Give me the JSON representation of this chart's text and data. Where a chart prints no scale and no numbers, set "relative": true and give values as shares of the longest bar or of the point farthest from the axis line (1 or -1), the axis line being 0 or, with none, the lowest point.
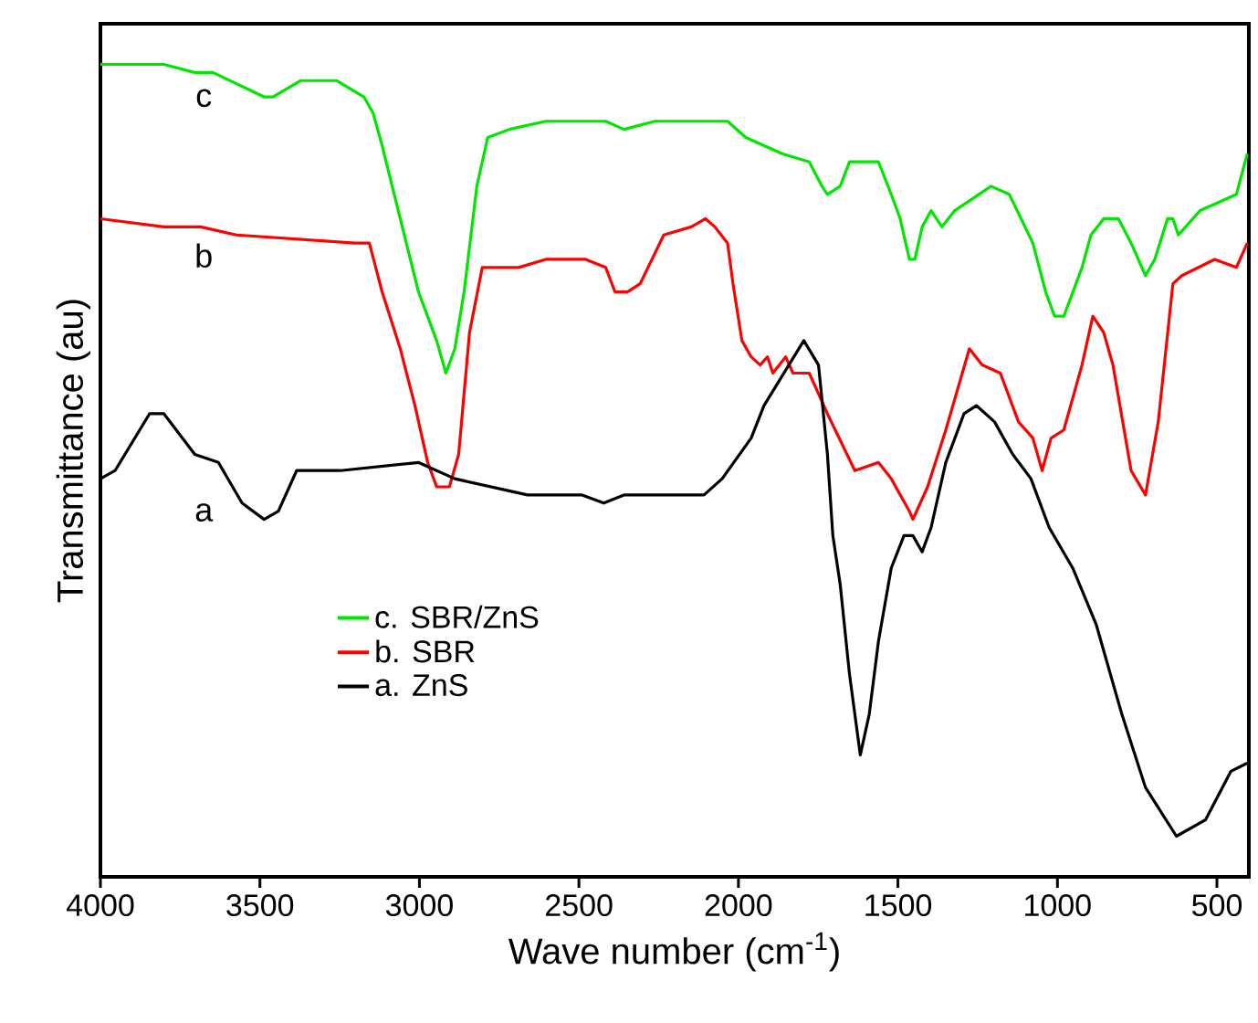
{
  "chart_data": {
    "type": "line",
    "xlabel": "Wave number (cm$^{-1}$)",
    "ylabel": "Transmittance (au)",
    "relative": true,
    "xlim": [
      4000,
      400
    ],
    "xticks": [
      4000,
      3500,
      3000,
      2500,
      2000,
      1500,
      1000,
      500
    ],
    "legend": "bottom left",
    "grid": false,
    "marker": "none",
    "line_style": "solid",
    "series": [
      {
        "name": "c. SBR/ZnS",
        "color": "#00e600",
        "x": [
          4000,
          3801,
          3704,
          3647,
          3487,
          3459,
          3373,
          3259,
          3174,
          3145,
          3117,
          3060,
          3003,
          2946,
          2917,
          2889,
          2860,
          2820,
          2786,
          2718,
          2604,
          2490,
          2416,
          2359,
          2262,
          2034,
          1977,
          1863,
          1778,
          1738,
          1721,
          1681,
          1652,
          1607,
          1561,
          1521,
          1493,
          1464,
          1447,
          1424,
          1396,
          1362,
          1322,
          1208,
          1151,
          1077,
          1037,
          1009,
          980,
          923,
          895,
          855,
          809,
          769,
          724,
          695,
          655,
          638,
          621,
          553,
          496,
          439,
          405
        ],
        "values": [
          1.0,
          1.0,
          0.99,
          0.99,
          0.96,
          0.96,
          0.98,
          0.98,
          0.96,
          0.94,
          0.9,
          0.81,
          0.72,
          0.66,
          0.62,
          0.65,
          0.72,
          0.85,
          0.91,
          0.92,
          0.93,
          0.93,
          0.93,
          0.92,
          0.93,
          0.93,
          0.91,
          0.89,
          0.88,
          0.85,
          0.84,
          0.85,
          0.88,
          0.88,
          0.88,
          0.84,
          0.81,
          0.76,
          0.76,
          0.8,
          0.82,
          0.8,
          0.82,
          0.85,
          0.84,
          0.78,
          0.72,
          0.69,
          0.69,
          0.75,
          0.79,
          0.81,
          0.81,
          0.78,
          0.74,
          0.76,
          0.81,
          0.81,
          0.79,
          0.82,
          0.83,
          0.84,
          0.89
        ]
      },
      {
        "name": "b. SBR",
        "color": "#ff0000",
        "x": [
          4000,
          3801,
          3686,
          3573,
          3202,
          3157,
          3117,
          3060,
          3014,
          2974,
          2946,
          2906,
          2877,
          2843,
          2803,
          2689,
          2604,
          2479,
          2416,
          2387,
          2348,
          2308,
          2234,
          2148,
          2103,
          2074,
          2034,
          2017,
          1989,
          1960,
          1932,
          1909,
          1892,
          1852,
          1829,
          1778,
          1721,
          1635,
          1561,
          1521,
          1464,
          1453,
          1407,
          1350,
          1276,
          1236,
          1179,
          1122,
          1077,
          1048,
          1020,
          980,
          923,
          889,
          855,
          826,
          769,
          724,
          684,
          638,
          610,
          507,
          439,
          405
        ],
        "values": [
          0.81,
          0.8,
          0.8,
          0.79,
          0.78,
          0.78,
          0.72,
          0.65,
          0.58,
          0.51,
          0.48,
          0.48,
          0.52,
          0.67,
          0.75,
          0.75,
          0.76,
          0.76,
          0.75,
          0.72,
          0.72,
          0.73,
          0.79,
          0.8,
          0.81,
          0.8,
          0.78,
          0.73,
          0.66,
          0.64,
          0.63,
          0.64,
          0.62,
          0.64,
          0.62,
          0.62,
          0.57,
          0.5,
          0.51,
          0.49,
          0.45,
          0.44,
          0.48,
          0.55,
          0.65,
          0.63,
          0.62,
          0.56,
          0.54,
          0.5,
          0.54,
          0.55,
          0.63,
          0.69,
          0.67,
          0.63,
          0.5,
          0.47,
          0.56,
          0.73,
          0.74,
          0.76,
          0.75,
          0.78
        ]
      },
      {
        "name": "a. ZnS",
        "color": "#000000",
        "x": [
          4000,
          3954,
          3846,
          3801,
          3704,
          3630,
          3556,
          3487,
          3442,
          3385,
          3248,
          3003,
          2889,
          2661,
          2490,
          2422,
          2359,
          2319,
          2108,
          2051,
          1960,
          1920,
          1795,
          1749,
          1721,
          1704,
          1681,
          1652,
          1618,
          1590,
          1561,
          1521,
          1481,
          1453,
          1424,
          1396,
          1350,
          1293,
          1254,
          1197,
          1140,
          1083,
          1026,
          952,
          878,
          798,
          724,
          627,
          536,
          456,
          405
        ],
        "values": [
          0.49,
          0.5,
          0.57,
          0.57,
          0.52,
          0.51,
          0.46,
          0.44,
          0.45,
          0.5,
          0.5,
          0.51,
          0.49,
          0.47,
          0.47,
          0.46,
          0.47,
          0.47,
          0.47,
          0.49,
          0.54,
          0.58,
          0.66,
          0.63,
          0.52,
          0.42,
          0.36,
          0.25,
          0.15,
          0.2,
          0.29,
          0.38,
          0.42,
          0.42,
          0.4,
          0.43,
          0.51,
          0.57,
          0.58,
          0.56,
          0.52,
          0.49,
          0.43,
          0.38,
          0.31,
          0.2,
          0.11,
          0.05,
          0.07,
          0.13,
          0.14
        ]
      }
    ],
    "annotations": [
      "c",
      "b",
      "a"
    ]
  }
}
